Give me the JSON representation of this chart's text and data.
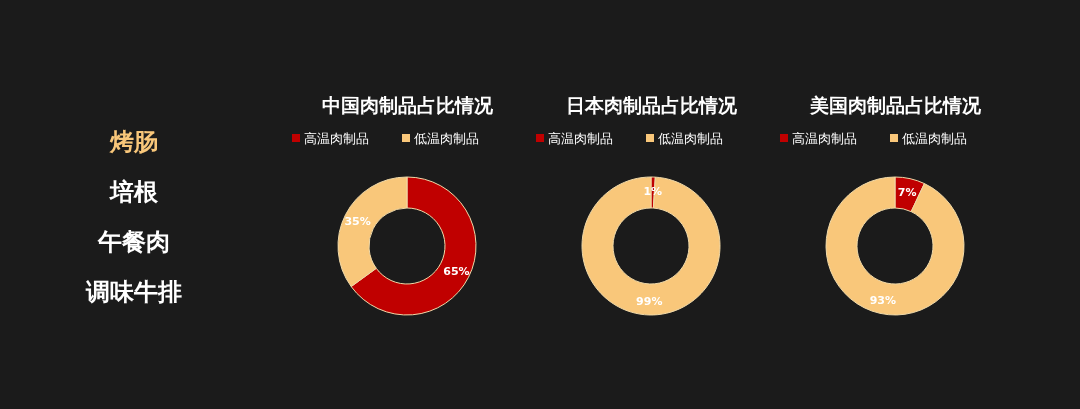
{
  "chart_data": [
    {
      "type": "other",
      "annotations": [
        "烤肠",
        "培根",
        "午餐肉",
        "调味牛排"
      ],
      "colors": [
        "#f9c77a",
        "#ffffff",
        "#ffffff",
        "#ffffff"
      ]
    },
    {
      "type": "donut",
      "title": "中国肉制品占比情况",
      "categories": [
        "高温肉制品",
        "低温肉制品"
      ],
      "values": [
        65,
        35
      ],
      "value_labels": [
        "65%",
        "35%"
      ],
      "colors": [
        "#c00000",
        "#f9c77a"
      ],
      "legend": "top"
    },
    {
      "type": "donut",
      "title": "日本肉制品占比情况",
      "categories": [
        "高温肉制品",
        "低温肉制品"
      ],
      "values": [
        1,
        99
      ],
      "value_labels": [
        "1%",
        "99%"
      ],
      "colors": [
        "#c00000",
        "#f9c77a"
      ],
      "legend": "top"
    },
    {
      "type": "donut",
      "title": "美国肉制品占比情况",
      "categories": [
        "高温肉制品",
        "低温肉制品"
      ],
      "values": [
        7,
        93
      ],
      "value_labels": [
        "7%",
        "93%"
      ],
      "colors": [
        "#c00000",
        "#f9c77a"
      ],
      "legend": "top"
    }
  ]
}
